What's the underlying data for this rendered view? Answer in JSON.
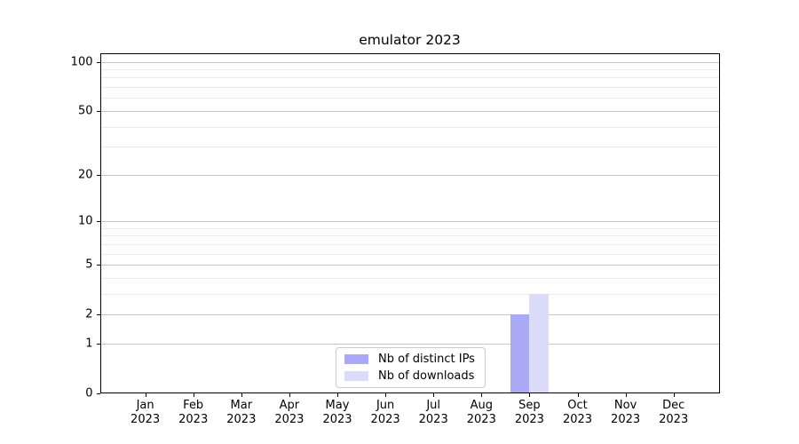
{
  "chart_data": {
    "type": "bar",
    "title": "emulator 2023",
    "categories": [
      {
        "label": "Jan",
        "year": "2023"
      },
      {
        "label": "Feb",
        "year": "2023"
      },
      {
        "label": "Mar",
        "year": "2023"
      },
      {
        "label": "Apr",
        "year": "2023"
      },
      {
        "label": "May",
        "year": "2023"
      },
      {
        "label": "Jun",
        "year": "2023"
      },
      {
        "label": "Jul",
        "year": "2023"
      },
      {
        "label": "Aug",
        "year": "2023"
      },
      {
        "label": "Sep",
        "year": "2023"
      },
      {
        "label": "Oct",
        "year": "2023"
      },
      {
        "label": "Nov",
        "year": "2023"
      },
      {
        "label": "Dec",
        "year": "2023"
      }
    ],
    "series": [
      {
        "name": "Nb of distinct IPs",
        "color": "#a9a9f5",
        "values": [
          0,
          0,
          0,
          0,
          0,
          0,
          0,
          0,
          2,
          0,
          0,
          0
        ]
      },
      {
        "name": "Nb of downloads",
        "color": "#dcdcfa",
        "values": [
          0,
          0,
          0,
          0,
          0,
          0,
          0,
          0,
          3,
          0,
          0,
          0
        ]
      }
    ],
    "y_axis": {
      "scale": "log1p",
      "major_ticks": [
        0,
        1,
        2,
        5,
        10,
        20,
        50,
        100
      ],
      "minor_gridlines": [
        3,
        4,
        6,
        7,
        8,
        9,
        30,
        40,
        60,
        70,
        80,
        90
      ],
      "max": 112.6
    },
    "legend": {
      "position": "lower-center"
    },
    "grid": true,
    "colors": {
      "major_grid": "#c6c6c6",
      "minor_grid": "#ebebeb",
      "frame": "#000000",
      "background": "#ffffff",
      "text": "#000000"
    }
  }
}
